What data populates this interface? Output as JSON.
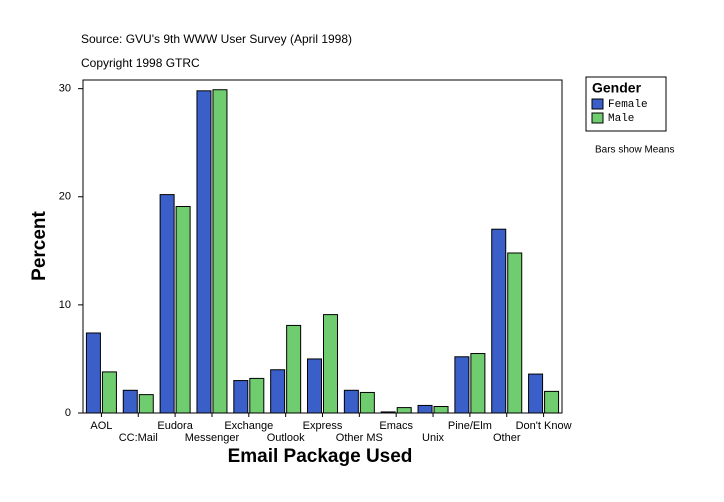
{
  "chart_data": {
    "type": "bar",
    "title": "Source: GVU's 9th WWW User Survey (April 1998)",
    "subtitle": "Copyright 1998 GTRC",
    "x_label": "Email Package Used",
    "y_label": "Percent",
    "annotation": "Bars show Means",
    "legend_title": "Gender",
    "legend_position": "right",
    "categories": [
      "AOL",
      "CC:Mail",
      "Eudora",
      "Messenger",
      "Exchange",
      "Outlook",
      "Express",
      "Other MS",
      "Emacs",
      "Unix",
      "Pine/Elm",
      "Other",
      "Don't Know"
    ],
    "series": [
      {
        "name": "Female",
        "color": "#3b5fc8",
        "values": [
          7.4,
          2.1,
          20.2,
          29.8,
          3.0,
          4.0,
          5.0,
          2.1,
          0.1,
          0.7,
          5.2,
          17.0,
          3.6
        ]
      },
      {
        "name": "Male",
        "color": "#6fcd6f",
        "values": [
          3.8,
          1.7,
          19.1,
          29.9,
          3.2,
          8.1,
          9.1,
          1.9,
          0.5,
          0.6,
          5.5,
          14.8,
          2.0
        ]
      }
    ],
    "ylim": [
      0,
      30.8
    ],
    "yticks": [
      0,
      10,
      20,
      30
    ]
  }
}
